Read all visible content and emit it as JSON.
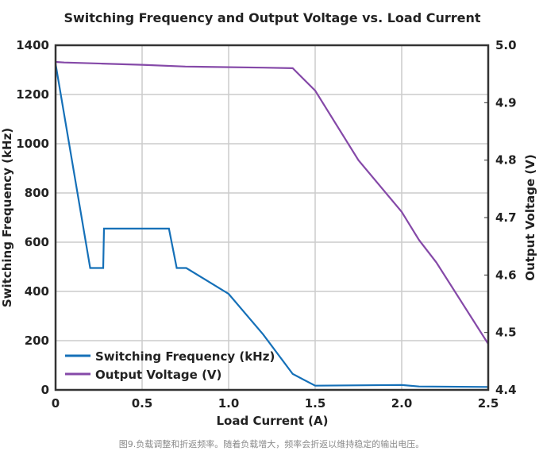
{
  "chart_data": {
    "type": "line",
    "title": "Switching Frequency and Output Voltage vs. Load Current",
    "xlabel": "Load Current (A)",
    "ylabel": "Switching Frequency (kHz)",
    "y2label": "Output Voltage (V)",
    "xlim": [
      0,
      2.5
    ],
    "ylim": [
      0,
      1400
    ],
    "y2lim": [
      4.4,
      5.0
    ],
    "x_ticks": [
      "0",
      "0.5",
      "1.0",
      "1.5",
      "2.0",
      "2.5"
    ],
    "x_tick_values": [
      0,
      0.5,
      1.0,
      1.5,
      2.0,
      2.5
    ],
    "y_ticks": [
      "0",
      "200",
      "400",
      "600",
      "800",
      "1000",
      "1200",
      "1400"
    ],
    "y_tick_values": [
      0,
      200,
      400,
      600,
      800,
      1000,
      1200,
      1400
    ],
    "y2_ticks": [
      "4.4",
      "4.5",
      "4.6",
      "4.7",
      "4.8",
      "4.9",
      "5.0"
    ],
    "y2_tick_values": [
      4.4,
      4.5,
      4.6,
      4.7,
      4.8,
      4.9,
      5.0
    ],
    "grid": true,
    "legend_position": "bottom-left",
    "series": [
      {
        "name": "Switching Frequency (kHz)",
        "axis": "left",
        "color": "#1570b8",
        "x": [
          0,
          0.2,
          0.275,
          0.28,
          0.655,
          0.7,
          0.755,
          1.0,
          1.2,
          1.37,
          1.5,
          2.0,
          2.1,
          2.5
        ],
        "values": [
          1325,
          495,
          495,
          655,
          655,
          495,
          495,
          390,
          225,
          65,
          17,
          20,
          14,
          12
        ]
      },
      {
        "name": "Output Voltage (V)",
        "axis": "right",
        "color": "#8549a8",
        "x": [
          0,
          0.05,
          0.27,
          0.5,
          0.75,
          1.2,
          1.37,
          1.5,
          1.75,
          2.0,
          2.1,
          2.2,
          2.5
        ],
        "values": [
          4.971,
          4.97,
          4.968,
          4.966,
          4.963,
          4.961,
          4.96,
          4.921,
          4.8,
          4.71,
          4.661,
          4.622,
          4.48
        ]
      }
    ]
  },
  "caption": "图9.负载调整和折返频率。随着负载增大，频率会折返以维持稳定的输出电压。",
  "colors": {
    "axis": "#333333",
    "grid": "#cccccc",
    "text": "#222222"
  }
}
